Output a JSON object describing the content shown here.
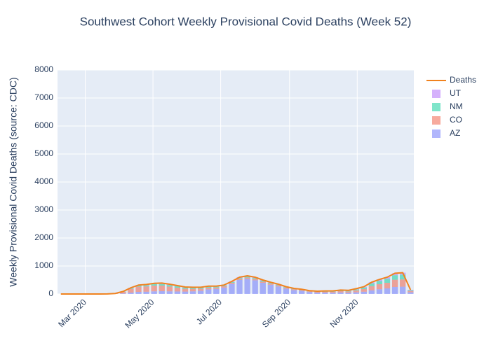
{
  "chart_data": {
    "type": "bar",
    "barmode": "stack",
    "title": "Southwest Cohort Weekly Provisional Covid Deaths (Week 52)",
    "y_label": "Weekly Provisional Covid Deaths (source: CDC)",
    "x": [
      "2020-02-08",
      "2020-02-15",
      "2020-02-22",
      "2020-02-29",
      "2020-03-07",
      "2020-03-14",
      "2020-03-21",
      "2020-03-28",
      "2020-04-04",
      "2020-04-11",
      "2020-04-18",
      "2020-04-25",
      "2020-05-02",
      "2020-05-09",
      "2020-05-16",
      "2020-05-23",
      "2020-05-30",
      "2020-06-06",
      "2020-06-13",
      "2020-06-20",
      "2020-06-27",
      "2020-07-04",
      "2020-07-11",
      "2020-07-18",
      "2020-07-25",
      "2020-08-01",
      "2020-08-08",
      "2020-08-15",
      "2020-08-22",
      "2020-08-29",
      "2020-09-05",
      "2020-09-12",
      "2020-09-19",
      "2020-09-26",
      "2020-10-03",
      "2020-10-10",
      "2020-10-17",
      "2020-10-24",
      "2020-10-31",
      "2020-11-07",
      "2020-11-14",
      "2020-11-21",
      "2020-11-28",
      "2020-12-05",
      "2020-12-12",
      "2020-12-19"
    ],
    "xlim": [
      "2020-02-05",
      "2020-12-22"
    ],
    "xticks": [
      {
        "value": "2020-03-01",
        "label": "Mar 2020"
      },
      {
        "value": "2020-05-01",
        "label": "May 2020"
      },
      {
        "value": "2020-07-01",
        "label": "Jul 2020"
      },
      {
        "value": "2020-09-01",
        "label": "Sep 2020"
      },
      {
        "value": "2020-11-01",
        "label": "Nov 2020"
      }
    ],
    "ylim": [
      0,
      8000
    ],
    "yticks": [
      0,
      1000,
      2000,
      3000,
      4000,
      5000,
      6000,
      7000,
      8000
    ],
    "grid": true,
    "legend": "top-right",
    "bar_opacity": 0.5,
    "series": [
      {
        "name": "AZ",
        "type": "bar",
        "color": "#636efa",
        "values": [
          0,
          0,
          0,
          0,
          0,
          0,
          1,
          5,
          20,
          50,
          75,
          80,
          95,
          100,
          95,
          90,
          85,
          95,
          115,
          165,
          180,
          230,
          360,
          500,
          540,
          490,
          400,
          330,
          270,
          190,
          140,
          110,
          70,
          50,
          50,
          45,
          55,
          45,
          60,
          80,
          130,
          170,
          200,
          250,
          260,
          60
        ]
      },
      {
        "name": "CO",
        "type": "bar",
        "color": "#ef553b",
        "values": [
          0,
          0,
          0,
          0,
          0,
          0,
          1,
          12,
          55,
          130,
          185,
          190,
          205,
          200,
          170,
          135,
          100,
          85,
          70,
          60,
          50,
          45,
          40,
          40,
          45,
          45,
          40,
          40,
          40,
          35,
          30,
          30,
          25,
          25,
          30,
          35,
          45,
          45,
          70,
          95,
          150,
          180,
          200,
          260,
          260,
          50
        ]
      },
      {
        "name": "NM",
        "type": "bar",
        "color": "#00cc96",
        "values": [
          0,
          0,
          0,
          0,
          0,
          0,
          0,
          2,
          10,
          25,
          35,
          40,
          50,
          55,
          55,
          50,
          45,
          40,
          35,
          35,
          30,
          25,
          25,
          30,
          35,
          35,
          35,
          30,
          25,
          20,
          15,
          15,
          10,
          10,
          15,
          15,
          20,
          20,
          35,
          55,
          95,
          115,
          140,
          160,
          170,
          25
        ]
      },
      {
        "name": "UT",
        "type": "bar",
        "color": "#ab63fa",
        "values": [
          0,
          0,
          0,
          0,
          0,
          0,
          0,
          1,
          5,
          15,
          25,
          30,
          30,
          35,
          30,
          25,
          20,
          20,
          20,
          20,
          20,
          20,
          25,
          30,
          30,
          30,
          25,
          20,
          15,
          15,
          15,
          15,
          15,
          15,
          15,
          15,
          20,
          20,
          25,
          30,
          45,
          55,
          60,
          70,
          70,
          15
        ]
      },
      {
        "name": "Deaths",
        "type": "line",
        "color": "#f0821e",
        "values": [
          0,
          0,
          0,
          0,
          0,
          0,
          2,
          20,
          90,
          220,
          320,
          340,
          380,
          390,
          350,
          300,
          250,
          240,
          240,
          280,
          280,
          320,
          450,
          600,
          650,
          600,
          500,
          420,
          350,
          260,
          200,
          170,
          120,
          100,
          110,
          110,
          140,
          130,
          190,
          260,
          420,
          520,
          600,
          740,
          760,
          150
        ]
      }
    ]
  }
}
